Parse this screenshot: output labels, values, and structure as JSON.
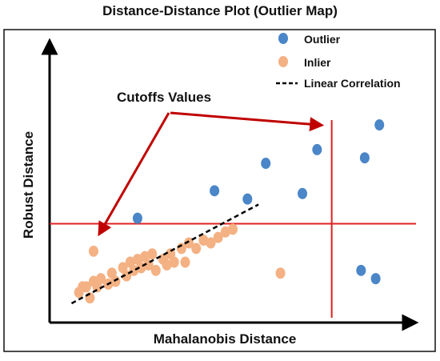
{
  "chart_data": {
    "type": "scatter",
    "title": "Distance-Distance Plot (Outlier Map)",
    "xlabel": "Mahalanobis Distance",
    "ylabel": "Robust Distance",
    "xlim": [
      0,
      10
    ],
    "ylim": [
      0,
      10
    ],
    "ticks_shown": false,
    "grid": false,
    "legend": {
      "placement": "top-right",
      "entries": [
        {
          "label": "Outlier",
          "kind": "marker",
          "color": "#4a86c8"
        },
        {
          "label": "Inlier",
          "kind": "marker",
          "color": "#f4b183"
        },
        {
          "label": "Linear Correlation",
          "kind": "dashed-line",
          "color": "#000000"
        }
      ]
    },
    "series": [
      {
        "name": "Outlier",
        "color": "#4a86c8",
        "points": [
          [
            2.4,
            3.8
          ],
          [
            4.5,
            4.8
          ],
          [
            5.4,
            4.5
          ],
          [
            5.9,
            5.8
          ],
          [
            6.9,
            4.7
          ],
          [
            7.3,
            6.3
          ],
          [
            8.6,
            6.0
          ],
          [
            9.0,
            7.2
          ],
          [
            8.5,
            1.9
          ],
          [
            8.9,
            1.6
          ]
        ]
      },
      {
        "name": "Inlier",
        "color": "#f4b183",
        "points": [
          [
            0.8,
            1.1
          ],
          [
            0.9,
            1.3
          ],
          [
            1.0,
            1.3
          ],
          [
            1.1,
            0.9
          ],
          [
            1.2,
            1.5
          ],
          [
            1.3,
            1.3
          ],
          [
            1.4,
            1.6
          ],
          [
            1.2,
            2.6
          ],
          [
            1.6,
            1.4
          ],
          [
            1.7,
            1.8
          ],
          [
            1.8,
            1.5
          ],
          [
            2.0,
            2.0
          ],
          [
            2.1,
            1.7
          ],
          [
            2.2,
            2.2
          ],
          [
            2.3,
            1.9
          ],
          [
            2.4,
            2.3
          ],
          [
            2.5,
            2.0
          ],
          [
            2.6,
            2.4
          ],
          [
            2.7,
            2.1
          ],
          [
            2.8,
            2.5
          ],
          [
            2.9,
            1.9
          ],
          [
            3.1,
            2.3
          ],
          [
            3.2,
            2.1
          ],
          [
            3.3,
            2.5
          ],
          [
            3.4,
            2.2
          ],
          [
            3.6,
            2.7
          ],
          [
            3.7,
            2.2
          ],
          [
            3.8,
            2.9
          ],
          [
            4.0,
            2.7
          ],
          [
            4.2,
            3.0
          ],
          [
            4.4,
            2.9
          ],
          [
            4.6,
            3.1
          ],
          [
            4.8,
            3.3
          ],
          [
            5.0,
            3.4
          ],
          [
            6.3,
            1.8
          ]
        ]
      }
    ],
    "reference_lines": [
      {
        "kind": "horizontal-cutoff",
        "color": "#e02020",
        "y": 3.6
      },
      {
        "kind": "vertical-cutoff",
        "color": "#e02020",
        "x": 7.7
      },
      {
        "kind": "dashed-fit",
        "color": "#000000",
        "from": [
          0.6,
          0.7
        ],
        "to": [
          5.7,
          4.3
        ]
      }
    ],
    "annotations": [
      {
        "text": "Cutoffs Values",
        "color": "#c00000"
      }
    ]
  }
}
